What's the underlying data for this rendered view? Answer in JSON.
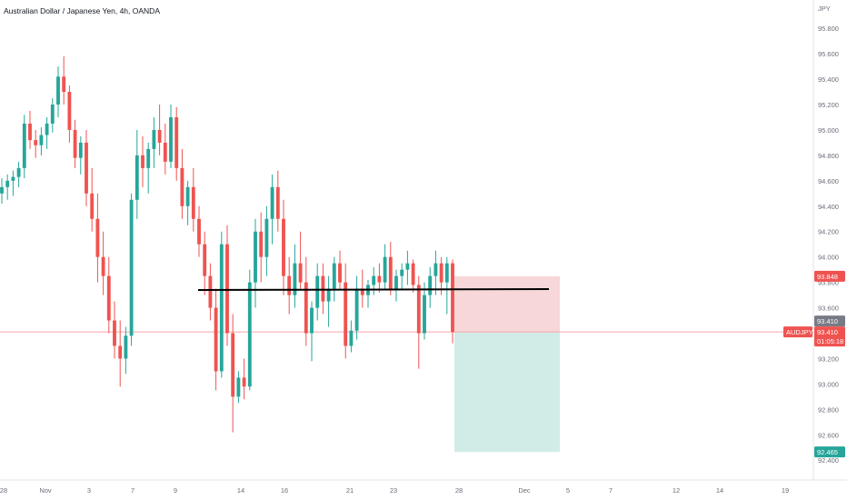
{
  "chart_data": {
    "type": "candlestick",
    "title": "Australian Dollar / Japanese Yen, 4h, OANDA",
    "symbol": "AUDJPY",
    "currency_label": "JPY",
    "price_axis": {
      "ylim": [
        92.33,
        95.88
      ],
      "ticks": [
        "95.800",
        "95.600",
        "95.400",
        "95.200",
        "95.000",
        "94.800",
        "94.600",
        "94.400",
        "94.200",
        "94.000",
        "93.800",
        "93.600",
        "93.400",
        "93.200",
        "93.000",
        "92.800",
        "92.600",
        "92.400"
      ]
    },
    "time_axis": {
      "labels": [
        "28",
        "Nov",
        "3",
        "7",
        "9",
        "14",
        "16",
        "21",
        "23",
        "28",
        "Dec",
        "5",
        "7",
        "12",
        "14",
        "19"
      ]
    },
    "candles": [
      [
        94.5,
        94.62,
        94.42,
        94.55
      ],
      [
        94.55,
        94.65,
        94.45,
        94.6
      ],
      [
        94.6,
        94.68,
        94.48,
        94.63
      ],
      [
        94.63,
        94.75,
        94.55,
        94.7
      ],
      [
        94.7,
        95.12,
        94.62,
        95.05
      ],
      [
        95.05,
        95.15,
        94.85,
        94.92
      ],
      [
        94.92,
        95.0,
        94.78,
        94.88
      ],
      [
        94.88,
        95.02,
        94.8,
        94.96
      ],
      [
        94.96,
        95.1,
        94.85,
        95.05
      ],
      [
        95.05,
        95.25,
        94.98,
        95.2
      ],
      [
        95.2,
        95.5,
        95.1,
        95.42
      ],
      [
        95.42,
        95.58,
        95.2,
        95.3
      ],
      [
        95.3,
        95.35,
        94.9,
        95.0
      ],
      [
        95.0,
        95.08,
        94.7,
        94.78
      ],
      [
        94.78,
        94.95,
        94.65,
        94.9
      ],
      [
        94.9,
        95.0,
        94.4,
        94.5
      ],
      [
        94.5,
        94.7,
        94.2,
        94.3
      ],
      [
        94.3,
        94.5,
        93.8,
        94.0
      ],
      [
        94.0,
        94.2,
        93.7,
        93.85
      ],
      [
        93.85,
        94.0,
        93.4,
        93.5
      ],
      [
        93.5,
        93.65,
        93.2,
        93.3
      ],
      [
        93.3,
        93.5,
        92.98,
        93.2
      ],
      [
        93.2,
        93.45,
        93.08,
        93.38
      ],
      [
        93.38,
        94.5,
        93.3,
        94.45
      ],
      [
        94.45,
        95.0,
        94.3,
        94.8
      ],
      [
        94.8,
        94.95,
        94.55,
        94.7
      ],
      [
        94.7,
        94.9,
        94.5,
        94.85
      ],
      [
        94.85,
        95.1,
        94.7,
        95.0
      ],
      [
        95.0,
        95.2,
        94.8,
        94.9
      ],
      [
        94.9,
        95.05,
        94.65,
        94.75
      ],
      [
        94.75,
        95.2,
        94.7,
        95.1
      ],
      [
        95.1,
        95.18,
        94.6,
        94.7
      ],
      [
        94.7,
        94.85,
        94.3,
        94.4
      ],
      [
        94.4,
        94.6,
        94.25,
        94.55
      ],
      [
        94.55,
        94.7,
        94.2,
        94.3
      ],
      [
        94.3,
        94.4,
        94.0,
        94.1
      ],
      [
        94.1,
        94.2,
        93.7,
        93.85
      ],
      [
        93.85,
        93.95,
        93.5,
        93.6
      ],
      [
        93.6,
        93.75,
        92.95,
        93.1
      ],
      [
        93.1,
        94.2,
        93.05,
        94.1
      ],
      [
        94.1,
        94.25,
        93.3,
        93.4
      ],
      [
        93.4,
        93.55,
        92.62,
        92.9
      ],
      [
        92.9,
        93.1,
        92.85,
        93.05
      ],
      [
        93.05,
        93.2,
        92.88,
        92.98
      ],
      [
        92.98,
        93.9,
        92.95,
        93.8
      ],
      [
        93.8,
        94.3,
        93.6,
        94.2
      ],
      [
        94.2,
        94.35,
        93.8,
        94.0
      ],
      [
        94.0,
        94.4,
        93.85,
        94.3
      ],
      [
        94.3,
        94.65,
        94.1,
        94.55
      ],
      [
        94.55,
        94.68,
        94.2,
        94.3
      ],
      [
        94.3,
        94.45,
        93.7,
        93.85
      ],
      [
        93.85,
        94.0,
        93.55,
        93.7
      ],
      [
        93.7,
        94.1,
        93.6,
        93.95
      ],
      [
        93.95,
        94.2,
        93.75,
        93.8
      ],
      [
        93.8,
        94.0,
        93.3,
        93.4
      ],
      [
        93.4,
        93.65,
        93.18,
        93.6
      ],
      [
        93.6,
        93.95,
        93.5,
        93.85
      ],
      [
        93.85,
        93.95,
        93.55,
        93.65
      ],
      [
        93.65,
        93.85,
        93.45,
        93.75
      ],
      [
        93.75,
        94.0,
        93.65,
        93.95
      ],
      [
        93.95,
        94.05,
        93.75,
        93.8
      ],
      [
        93.8,
        93.95,
        93.2,
        93.3
      ],
      [
        93.3,
        93.5,
        93.25,
        93.42
      ],
      [
        93.42,
        93.85,
        93.35,
        93.75
      ],
      [
        93.75,
        93.9,
        93.6,
        93.7
      ],
      [
        93.7,
        93.82,
        93.6,
        93.78
      ],
      [
        93.78,
        93.92,
        93.7,
        93.85
      ],
      [
        93.85,
        93.95,
        93.72,
        93.8
      ],
      [
        93.8,
        94.1,
        93.75,
        94.0
      ],
      [
        94.0,
        94.12,
        93.7,
        93.75
      ],
      [
        93.75,
        93.9,
        93.65,
        93.85
      ],
      [
        93.85,
        93.95,
        93.75,
        93.9
      ],
      [
        93.9,
        94.05,
        93.78,
        93.95
      ],
      [
        93.95,
        93.98,
        93.72,
        93.78
      ],
      [
        93.78,
        93.85,
        93.12,
        93.4
      ],
      [
        93.4,
        93.8,
        93.35,
        93.7
      ],
      [
        93.7,
        93.92,
        93.6,
        93.85
      ],
      [
        93.85,
        94.05,
        93.7,
        93.95
      ],
      [
        93.95,
        94.0,
        93.7,
        93.8
      ],
      [
        93.8,
        94.0,
        93.55,
        93.95
      ],
      [
        93.95,
        93.98,
        93.32,
        93.41
      ]
    ],
    "candle_time_range": [
      "Oct 28",
      "Nov 28"
    ],
    "horizontal_line_level": 93.74,
    "position": {
      "type": "short",
      "entry": 93.41,
      "stop": 93.848,
      "target": 92.465
    },
    "price_labels": {
      "stop": "93.848",
      "last": "93.410",
      "target": "92.465",
      "countdown": "01:05:18"
    },
    "colors": {
      "up": "#26a69a",
      "down": "#ef5350",
      "stop_zone": "#f8d7d9",
      "target_zone": "#d1ece7",
      "price_line": "#f7a5ab",
      "trend_line": "#000000",
      "grey_badge": "#787b86"
    }
  }
}
